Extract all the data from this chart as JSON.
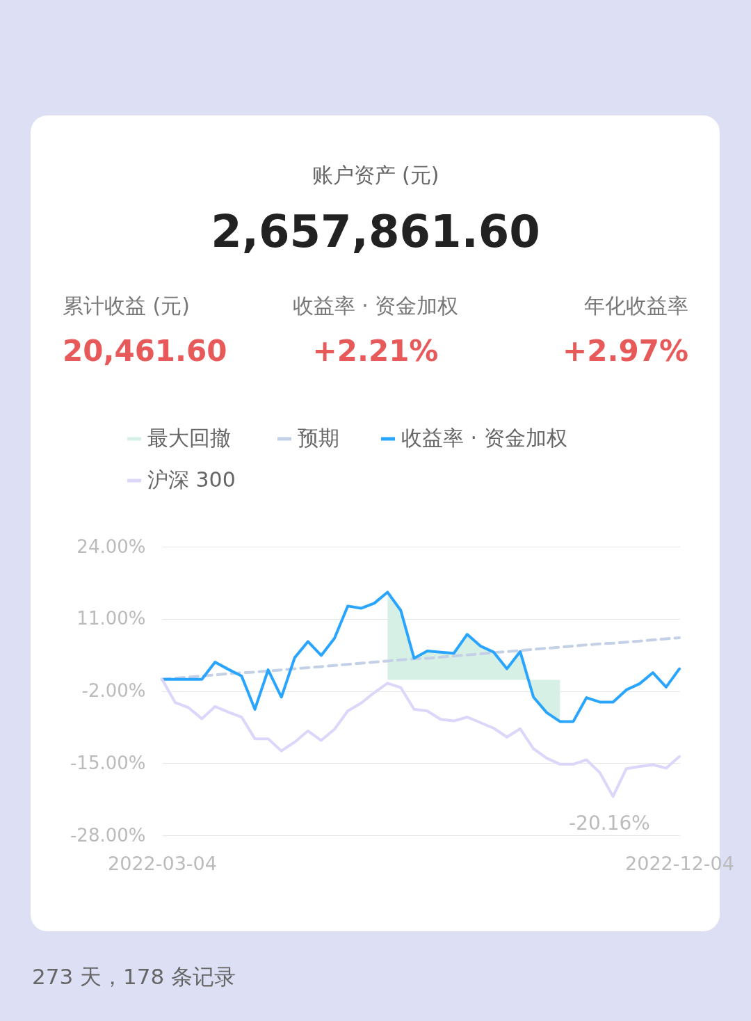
{
  "chart_data": {
    "type": "line",
    "title": "账户资产 (元)",
    "subtitle": "2,657,861.60",
    "annotations": [
      "累计收益 (元)",
      "20,461.60",
      "收益率 · 资金加权",
      "+2.21%",
      "年化收益率",
      "+2.97%",
      "-20.16%",
      "273 天，178 条记录"
    ],
    "categories": [
      "2022-03-04",
      null,
      null,
      null,
      null,
      null,
      null,
      null,
      null,
      null,
      null,
      null,
      null,
      null,
      null,
      null,
      null,
      null,
      null,
      null,
      null,
      null,
      null,
      null,
      null,
      null,
      null,
      null,
      null,
      null,
      null,
      null,
      null,
      null,
      null,
      null,
      null,
      null,
      null,
      "2022-12-04"
    ],
    "series": [
      {
        "name": "最大回撤",
        "type": "area",
        "color": "#d6f0e6",
        "values": [
          null,
          null,
          null,
          null,
          null,
          null,
          null,
          null,
          null,
          null,
          null,
          null,
          null,
          null,
          null,
          null,
          null,
          15.8,
          12.5,
          3.9,
          5.2,
          5.0,
          4.8,
          8.2,
          6.1,
          5.0,
          2.0,
          5.1,
          -3.1,
          -5.9,
          -7.5,
          null,
          null,
          null,
          null,
          null,
          null,
          null,
          null,
          null
        ]
      },
      {
        "name": "预期",
        "color": "#c4d0e6",
        "line_style": "dashed",
        "values": [
          0.1,
          0.3,
          0.5,
          0.7,
          0.9,
          1.1,
          1.3,
          1.4,
          1.6,
          1.8,
          2.0,
          2.2,
          2.4,
          2.6,
          2.8,
          3.0,
          3.2,
          3.4,
          3.6,
          3.8,
          3.9,
          4.1,
          4.3,
          4.5,
          4.7,
          4.9,
          5.1,
          5.3,
          5.5,
          5.7,
          5.9,
          6.1,
          6.3,
          6.5,
          6.6,
          6.8,
          7.0,
          7.2,
          7.4,
          7.6
        ]
      },
      {
        "name": "收益率 · 资金加权",
        "color": "#2aa5ff",
        "values": [
          0.1,
          0.1,
          0.1,
          0.1,
          3.2,
          1.9,
          0.7,
          -5.3,
          1.8,
          -3.1,
          4.0,
          6.9,
          4.4,
          7.5,
          13.3,
          12.9,
          13.8,
          15.8,
          12.5,
          3.9,
          5.2,
          5.0,
          4.8,
          8.2,
          6.1,
          5.0,
          2.0,
          5.1,
          -3.1,
          -5.9,
          -7.5,
          -7.5,
          -3.2,
          -4.0,
          -4.0,
          -1.8,
          -0.7,
          1.3,
          -1.3,
          2.0
        ]
      },
      {
        "name": "沪深 300",
        "color": "#dcd6fa",
        "values": [
          0.1,
          -4.1,
          -5.0,
          -7.0,
          -4.8,
          -5.8,
          -6.7,
          -10.6,
          -10.6,
          -12.8,
          -11.2,
          -9.2,
          -10.9,
          -8.9,
          -5.6,
          -4.2,
          -2.3,
          -0.6,
          -1.4,
          -5.3,
          -5.6,
          -7.1,
          -7.4,
          -6.7,
          -7.7,
          -8.7,
          -10.3,
          -8.8,
          -12.4,
          -14.1,
          -15.2,
          -15.2,
          -14.4,
          -16.7,
          -21.0,
          -16.0,
          -15.6,
          -15.3,
          -15.9,
          -13.8
        ]
      }
    ],
    "ylim": [
      -28,
      24
    ],
    "yticks": [
      {
        "value": -28,
        "label": "-28.00%"
      },
      {
        "value": -15,
        "label": "-15.00%"
      },
      {
        "value": -2,
        "label": "-2.00%"
      },
      {
        "value": 11,
        "label": "11.00%"
      },
      {
        "value": 24,
        "label": "24.00%"
      }
    ],
    "grid": "y",
    "legend": "top"
  }
}
